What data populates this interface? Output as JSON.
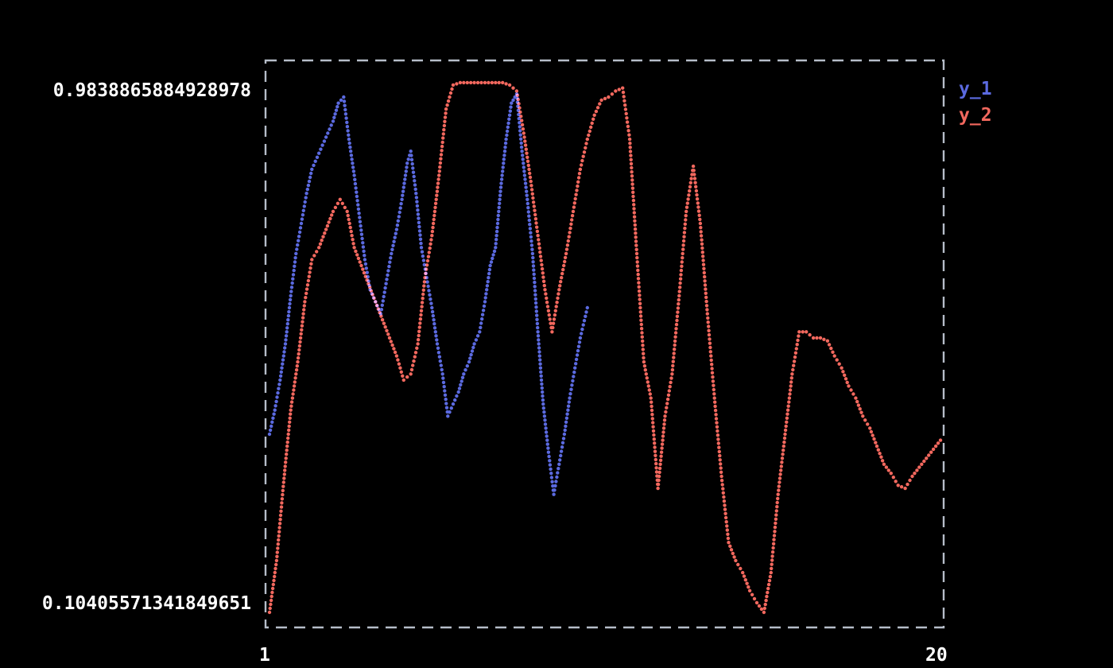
{
  "window": {
    "background": "#000000"
  },
  "chart_data": {
    "type": "scatter",
    "title": "",
    "xlabel": "",
    "ylabel": "",
    "grid": false,
    "legend_position": "right-top",
    "marker": "dot",
    "border_color": "#b6bdc9",
    "x_axis": {
      "min_label": "1",
      "max_label": "20",
      "range": [
        1,
        20
      ]
    },
    "y_axis": {
      "min_label": "0.10405571341849651",
      "max_label": "0.9838865884928978",
      "range": [
        0.10405571341849651,
        0.9838865884928978
      ]
    },
    "legend": [
      {
        "label": "y_1",
        "color": "#5b6ae0"
      },
      {
        "label": "y_2",
        "color": "#f3685e"
      }
    ],
    "series": [
      {
        "name": "y_1",
        "color": "#5b6ae0",
        "points": [
          [
            1.0,
            0.4
          ],
          [
            1.15,
            0.44
          ],
          [
            1.3,
            0.49
          ],
          [
            1.45,
            0.55
          ],
          [
            1.6,
            0.63
          ],
          [
            1.75,
            0.7
          ],
          [
            1.9,
            0.75
          ],
          [
            2.05,
            0.8
          ],
          [
            2.2,
            0.84
          ],
          [
            2.35,
            0.86
          ],
          [
            2.5,
            0.88
          ],
          [
            2.65,
            0.9
          ],
          [
            2.8,
            0.92
          ],
          [
            2.95,
            0.95
          ],
          [
            3.1,
            0.96
          ],
          [
            3.25,
            0.89
          ],
          [
            3.4,
            0.83
          ],
          [
            3.55,
            0.76
          ],
          [
            3.7,
            0.69
          ],
          [
            3.85,
            0.64
          ],
          [
            4.0,
            0.62
          ],
          [
            4.15,
            0.6
          ],
          [
            4.3,
            0.65
          ],
          [
            4.45,
            0.7
          ],
          [
            4.6,
            0.74
          ],
          [
            4.75,
            0.79
          ],
          [
            4.9,
            0.85
          ],
          [
            5.0,
            0.87
          ],
          [
            5.15,
            0.8
          ],
          [
            5.3,
            0.71
          ],
          [
            5.45,
            0.66
          ],
          [
            5.6,
            0.61
          ],
          [
            5.75,
            0.55
          ],
          [
            5.9,
            0.5
          ],
          [
            6.05,
            0.43
          ],
          [
            6.2,
            0.45
          ],
          [
            6.35,
            0.47
          ],
          [
            6.5,
            0.5
          ],
          [
            6.65,
            0.52
          ],
          [
            6.8,
            0.55
          ],
          [
            6.95,
            0.57
          ],
          [
            7.1,
            0.62
          ],
          [
            7.25,
            0.68
          ],
          [
            7.4,
            0.71
          ],
          [
            7.55,
            0.81
          ],
          [
            7.7,
            0.89
          ],
          [
            7.85,
            0.95
          ],
          [
            8.0,
            0.965
          ],
          [
            8.15,
            0.87
          ],
          [
            8.3,
            0.79
          ],
          [
            8.45,
            0.7
          ],
          [
            8.6,
            0.57
          ],
          [
            8.75,
            0.45
          ],
          [
            8.9,
            0.37
          ],
          [
            9.05,
            0.3
          ],
          [
            9.2,
            0.35
          ],
          [
            9.35,
            0.4
          ],
          [
            9.5,
            0.46
          ],
          [
            9.65,
            0.51
          ],
          [
            9.8,
            0.56
          ],
          [
            10.0,
            0.61
          ]
        ]
      },
      {
        "name": "y_2",
        "color": "#f3685e",
        "points": [
          [
            1.0,
            0.104
          ],
          [
            1.2,
            0.19
          ],
          [
            1.4,
            0.32
          ],
          [
            1.6,
            0.44
          ],
          [
            1.8,
            0.52
          ],
          [
            2.0,
            0.62
          ],
          [
            2.2,
            0.69
          ],
          [
            2.4,
            0.71
          ],
          [
            2.6,
            0.74
          ],
          [
            2.8,
            0.77
          ],
          [
            3.0,
            0.79
          ],
          [
            3.2,
            0.77
          ],
          [
            3.4,
            0.71
          ],
          [
            3.6,
            0.68
          ],
          [
            3.8,
            0.65
          ],
          [
            4.0,
            0.62
          ],
          [
            4.2,
            0.59
          ],
          [
            4.4,
            0.56
          ],
          [
            4.6,
            0.53
          ],
          [
            4.8,
            0.49
          ],
          [
            5.0,
            0.5
          ],
          [
            5.2,
            0.55
          ],
          [
            5.4,
            0.66
          ],
          [
            5.6,
            0.73
          ],
          [
            5.8,
            0.83
          ],
          [
            6.0,
            0.94
          ],
          [
            6.2,
            0.98
          ],
          [
            6.4,
            0.984
          ],
          [
            6.6,
            0.984
          ],
          [
            6.8,
            0.984
          ],
          [
            7.0,
            0.984
          ],
          [
            7.2,
            0.984
          ],
          [
            7.4,
            0.984
          ],
          [
            7.6,
            0.984
          ],
          [
            7.8,
            0.98
          ],
          [
            8.0,
            0.97
          ],
          [
            8.2,
            0.9
          ],
          [
            8.4,
            0.82
          ],
          [
            8.6,
            0.73
          ],
          [
            8.8,
            0.64
          ],
          [
            9.0,
            0.57
          ],
          [
            9.2,
            0.64
          ],
          [
            9.4,
            0.7
          ],
          [
            9.6,
            0.77
          ],
          [
            9.8,
            0.84
          ],
          [
            10.0,
            0.89
          ],
          [
            10.2,
            0.93
          ],
          [
            10.4,
            0.955
          ],
          [
            10.6,
            0.96
          ],
          [
            10.8,
            0.97
          ],
          [
            11.0,
            0.975
          ],
          [
            11.2,
            0.89
          ],
          [
            11.4,
            0.7
          ],
          [
            11.6,
            0.52
          ],
          [
            11.8,
            0.46
          ],
          [
            12.0,
            0.31
          ],
          [
            12.2,
            0.43
          ],
          [
            12.4,
            0.5
          ],
          [
            12.6,
            0.63
          ],
          [
            12.8,
            0.77
          ],
          [
            13.0,
            0.845
          ],
          [
            13.2,
            0.75
          ],
          [
            13.4,
            0.6
          ],
          [
            13.6,
            0.46
          ],
          [
            13.8,
            0.33
          ],
          [
            14.0,
            0.22
          ],
          [
            14.2,
            0.19
          ],
          [
            14.4,
            0.17
          ],
          [
            14.6,
            0.14
          ],
          [
            14.8,
            0.12
          ],
          [
            15.0,
            0.104
          ],
          [
            15.2,
            0.17
          ],
          [
            15.4,
            0.3
          ],
          [
            15.6,
            0.4
          ],
          [
            15.8,
            0.5
          ],
          [
            16.0,
            0.57
          ],
          [
            16.2,
            0.57
          ],
          [
            16.4,
            0.56
          ],
          [
            16.6,
            0.56
          ],
          [
            16.8,
            0.555
          ],
          [
            17.0,
            0.53
          ],
          [
            17.2,
            0.51
          ],
          [
            17.4,
            0.48
          ],
          [
            17.6,
            0.46
          ],
          [
            17.8,
            0.43
          ],
          [
            18.0,
            0.41
          ],
          [
            18.2,
            0.38
          ],
          [
            18.4,
            0.35
          ],
          [
            18.6,
            0.335
          ],
          [
            18.8,
            0.315
          ],
          [
            19.0,
            0.31
          ],
          [
            19.2,
            0.33
          ],
          [
            19.4,
            0.345
          ],
          [
            19.6,
            0.36
          ],
          [
            19.8,
            0.375
          ],
          [
            20.0,
            0.39
          ]
        ]
      }
    ]
  }
}
